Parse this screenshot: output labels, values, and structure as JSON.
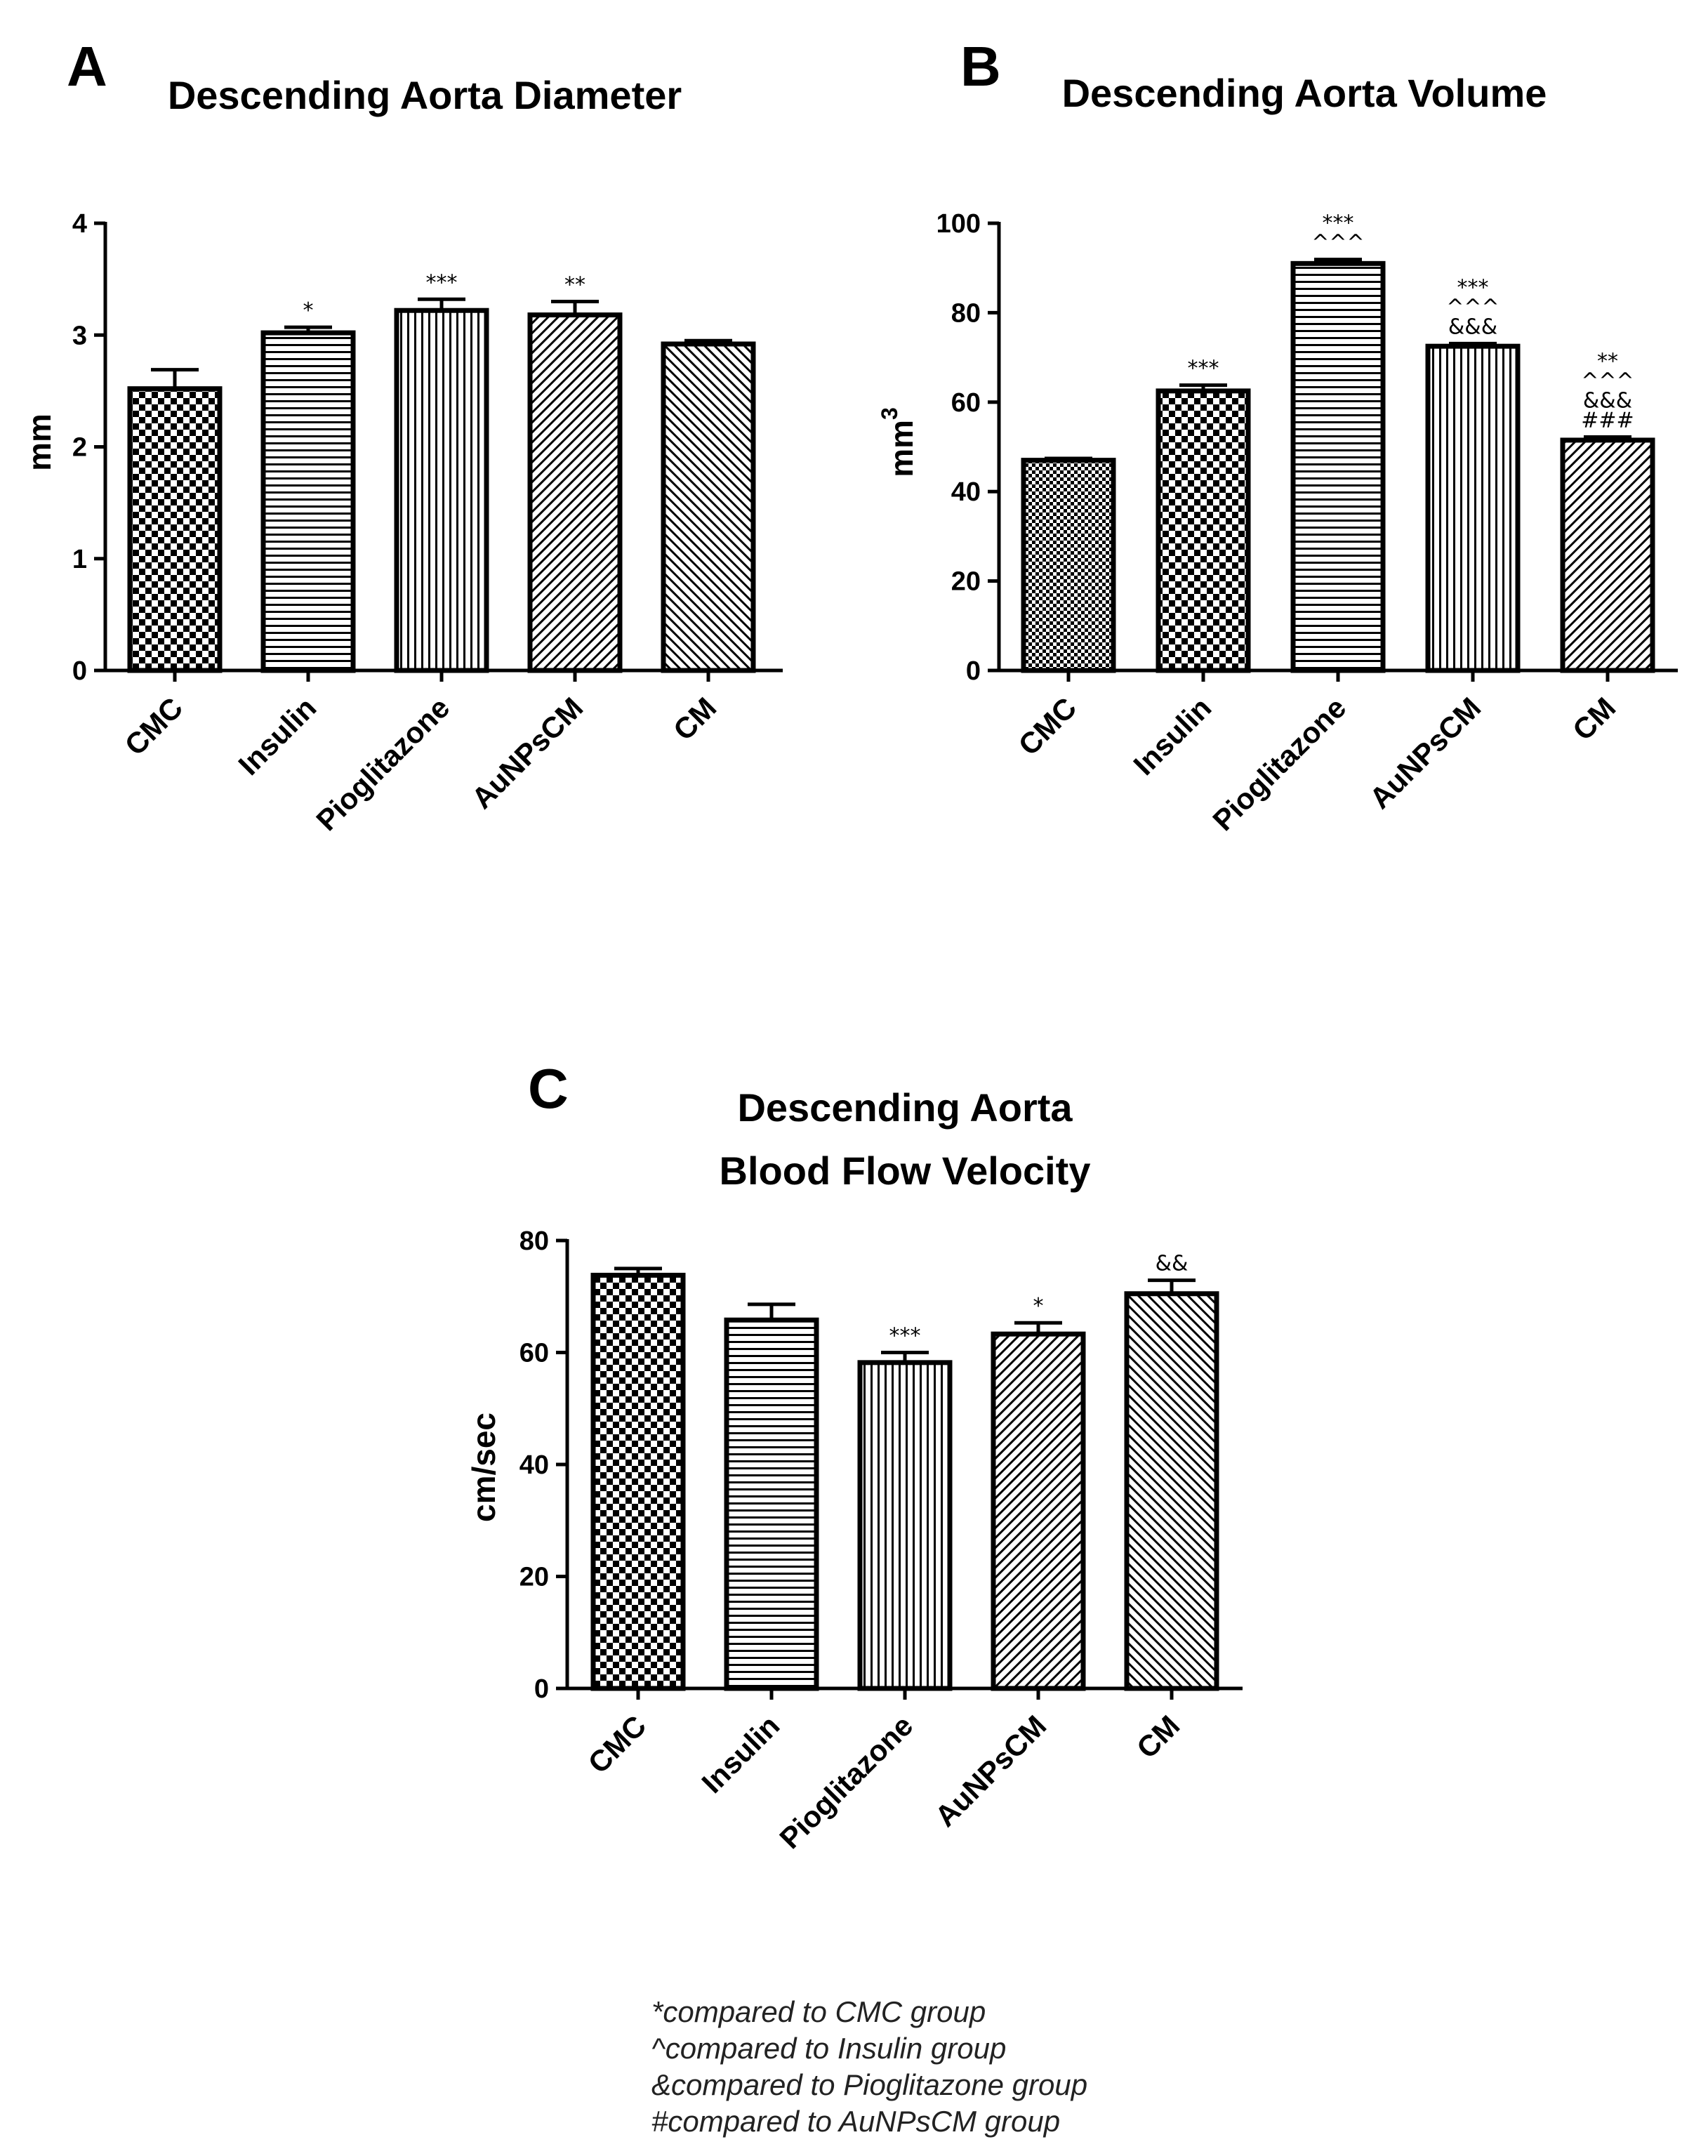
{
  "colors": {
    "bar_fill": "#ffffff",
    "bar_stroke": "#000000",
    "pattern_ink": "#000000"
  },
  "chart_data": [
    {
      "panel": "A",
      "type": "bar",
      "title": "Descending Aorta Diameter",
      "xlabel": "",
      "ylabel": "mm",
      "ylabel_sup": "",
      "ylim": [
        0,
        4
      ],
      "yticks": [
        0,
        1,
        2,
        3,
        4
      ],
      "categories": [
        "CMC",
        "Insulin",
        "Pioglitazone",
        "AuNPsCM",
        "CM"
      ],
      "values": [
        2.52,
        3.02,
        3.22,
        3.18,
        2.92
      ],
      "errors": [
        0.17,
        0.05,
        0.1,
        0.12,
        0.03
      ],
      "patterns": [
        "checker",
        "hlines",
        "vlines",
        "diag",
        "diag-back"
      ],
      "significance": [
        [],
        [
          "*"
        ],
        [
          "***"
        ],
        [
          "**"
        ],
        []
      ]
    },
    {
      "panel": "B",
      "type": "bar",
      "title": "Descending Aorta Volume",
      "xlabel": "",
      "ylabel": "mm",
      "ylabel_sup": "3",
      "ylim": [
        0,
        100
      ],
      "yticks": [
        0,
        20,
        40,
        60,
        80,
        100
      ],
      "categories": [
        "CMC",
        "Insulin",
        "Pioglitazone",
        "AuNPsCM",
        "CM"
      ],
      "values": [
        47,
        62.5,
        91,
        72.5,
        51.5
      ],
      "errors": [
        0.4,
        1.3,
        0.9,
        0.6,
        0.7
      ],
      "patterns": [
        "checker-fine",
        "checker",
        "hlines",
        "vlines",
        "diag"
      ],
      "significance": [
        [],
        [
          "***"
        ],
        [
          "***",
          "^^^"
        ],
        [
          "***",
          "^^^",
          "&&&"
        ],
        [
          "**",
          "^^^",
          "&&&",
          "###"
        ]
      ]
    },
    {
      "panel": "C",
      "type": "bar",
      "title": "Descending Aorta",
      "title_line2": "Blood Flow Velocity",
      "xlabel": "",
      "ylabel": "cm/sec",
      "ylabel_sup": "",
      "ylim": [
        0,
        80
      ],
      "yticks": [
        0,
        20,
        40,
        60,
        80
      ],
      "categories": [
        "CMC",
        "Insulin",
        "Pioglitazone",
        "AuNPsCM",
        "CM"
      ],
      "values": [
        73.8,
        65.8,
        58.2,
        63.3,
        70.5
      ],
      "errors": [
        1.2,
        2.8,
        1.8,
        2.0,
        2.4
      ],
      "patterns": [
        "checker",
        "hlines",
        "vlines",
        "diag",
        "diag-back"
      ],
      "significance": [
        [],
        [],
        [
          "***"
        ],
        [
          "*"
        ],
        [
          "&&"
        ]
      ]
    }
  ],
  "notes": [
    "*compared to CMC group",
    "^compared to Insulin group",
    "&compared to Pioglitazone group",
    "#compared to AuNPsCM group"
  ]
}
